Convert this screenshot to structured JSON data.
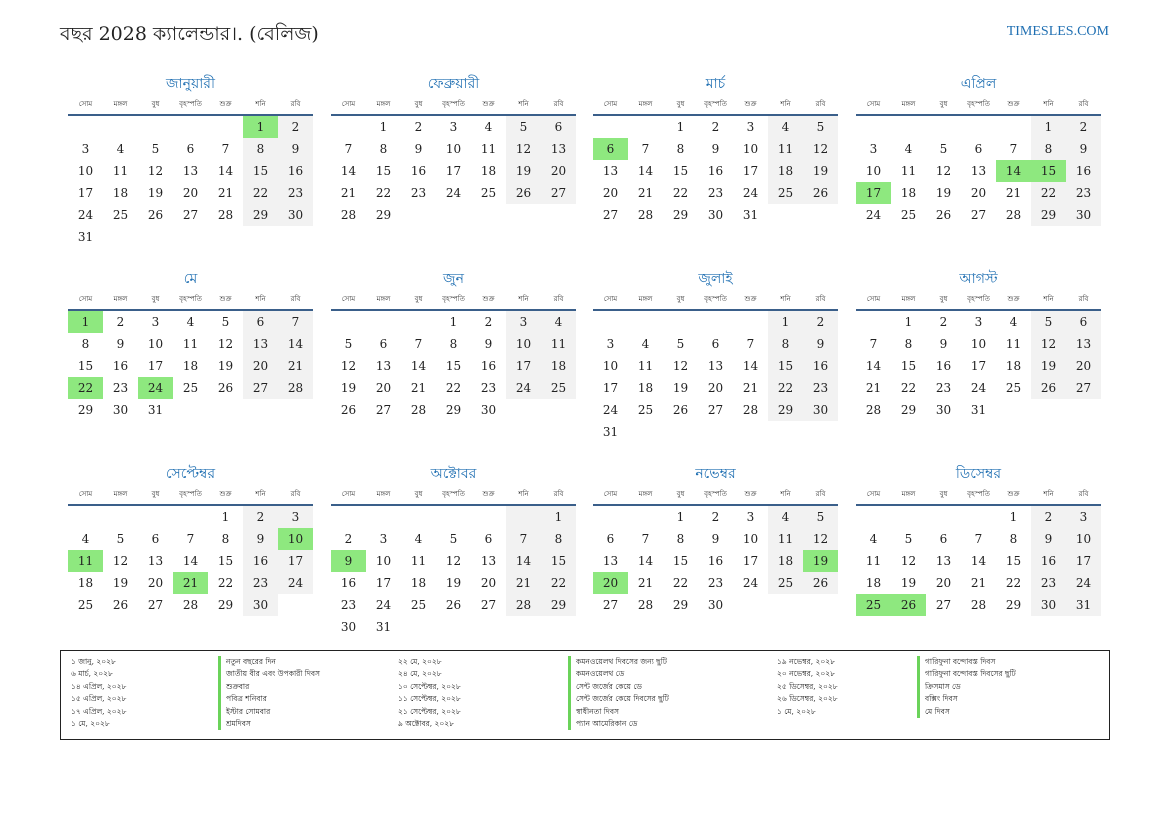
{
  "title": "বছর 2028 ক্যালেন্ডার।. (বেলিজ)",
  "site": "TIMESLES.COM",
  "colors": {
    "accent": "#1f6fb2",
    "holiday": "#8ee87f",
    "weekend": "#f2f2f2"
  },
  "weekdays": [
    "সোম",
    "মঙ্গল",
    "বুধ",
    "বৃহস্পতি",
    "শুক্র",
    "শনি",
    "রবি"
  ],
  "months": [
    {
      "name": "জানুয়ারী",
      "offset": 5,
      "days": 31,
      "holidays": [
        1
      ]
    },
    {
      "name": "ফেব্রুয়ারী",
      "offset": 1,
      "days": 29,
      "holidays": []
    },
    {
      "name": "মার্চ",
      "offset": 2,
      "days": 31,
      "holidays": [
        6
      ]
    },
    {
      "name": "এপ্রিল",
      "offset": 5,
      "days": 30,
      "holidays": [
        14,
        15,
        17
      ]
    },
    {
      "name": "মে",
      "offset": 0,
      "days": 31,
      "holidays": [
        1,
        22,
        24
      ]
    },
    {
      "name": "জুন",
      "offset": 3,
      "days": 30,
      "holidays": []
    },
    {
      "name": "জুলাই",
      "offset": 5,
      "days": 31,
      "holidays": []
    },
    {
      "name": "আগস্ট",
      "offset": 1,
      "days": 31,
      "holidays": []
    },
    {
      "name": "সেপ্টেম্বর",
      "offset": 4,
      "days": 30,
      "holidays": [
        10,
        11,
        21
      ]
    },
    {
      "name": "অক্টোবর",
      "offset": 6,
      "days": 31,
      "holidays": [
        9
      ]
    },
    {
      "name": "নভেম্বর",
      "offset": 2,
      "days": 30,
      "holidays": [
        19,
        20
      ]
    },
    {
      "name": "ডিসেম্বর",
      "offset": 4,
      "days": 31,
      "holidays": [
        25,
        26
      ]
    }
  ],
  "holiday_list": [
    [
      {
        "date": "১ জানু, ২০২৮",
        "name": "নতুন বছরের দিন"
      },
      {
        "date": "৬ মার্চ, ২০২৮",
        "name": "জাতীয় বীর এবং উপকারী দিবস"
      },
      {
        "date": "১৪ এপ্রিল, ২০২৮",
        "name": "শুক্রবার"
      },
      {
        "date": "১৫ এপ্রিল, ২০২৮",
        "name": "পবিত্র শনিবার"
      },
      {
        "date": "১৭ এপ্রিল, ২০২৮",
        "name": "ইস্টার সোমবার"
      },
      {
        "date": "১ মে, ২০২৮",
        "name": "শ্রমদিবস"
      }
    ],
    [
      {
        "date": "২২ মে, ২০২৮",
        "name": "কমনওয়েলথ দিবসের জন্য ছুটি"
      },
      {
        "date": "২৪ মে, ২০২৮",
        "name": "কমনওয়েলথ ডে"
      },
      {
        "date": "১০ সেপ্টেম্বর, ২০২৮",
        "name": "সেন্ট জর্জের কেয়ে ডে"
      },
      {
        "date": "১১ সেপ্টেম্বর, ২০২৮",
        "name": "সেন্ট জর্জের কেয়ে দিবসের ছুটি"
      },
      {
        "date": "২১ সেপ্টেম্বর, ২০২৮",
        "name": "স্বাধীনতা দিবস"
      },
      {
        "date": "৯ অক্টোবর, ২০২৮",
        "name": "প্যান আমেরিকান ডে"
      }
    ],
    [
      {
        "date": "১৯ নভেম্বর, ২০২৮",
        "name": "গারিফুনা বন্দোবস্ত দিবস"
      },
      {
        "date": "২০ নভেম্বর, ২০২৮",
        "name": "গারিফুনা বন্দোবস্ত দিবসের ছুটি"
      },
      {
        "date": "২৫ ডিসেম্বর, ২০২৮",
        "name": "ক্রিসমাস ডে"
      },
      {
        "date": "২৬ ডিসেম্বর, ২০২৮",
        "name": "বক্সিং দিবস"
      },
      {
        "date": "১ মে, ২০২৮",
        "name": "মে দিবস"
      }
    ]
  ]
}
